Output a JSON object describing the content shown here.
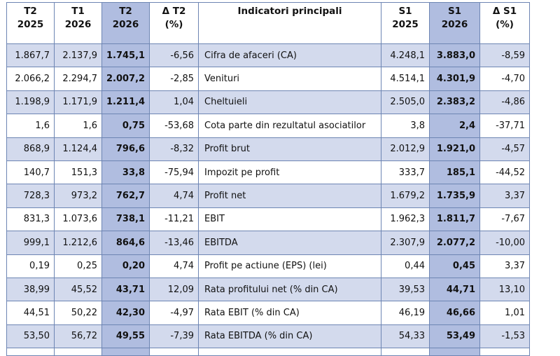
{
  "header": {
    "c1": [
      "T2",
      "2025"
    ],
    "c2": [
      "T1",
      "2026"
    ],
    "c3": [
      "T2",
      "2026"
    ],
    "c4": [
      "Δ T2",
      "(%)"
    ],
    "c5": "Indicatori principali",
    "c6": [
      "S1",
      "2025"
    ],
    "c7": [
      "S1",
      "2026"
    ],
    "c8": [
      "Δ S1",
      "(%)"
    ]
  },
  "rows": [
    {
      "t2_2025": "1.867,7",
      "t1_2026": "2.137,9",
      "t2_2026": "1.745,1",
      "d_t2": "-6,56",
      "name": "Cifra de afaceri (CA)",
      "s1_2025": "4.248,1",
      "s1_2026": "3.883,0",
      "d_s1": "-8,59"
    },
    {
      "t2_2025": "2.066,2",
      "t1_2026": "2.294,7",
      "t2_2026": "2.007,2",
      "d_t2": "-2,85",
      "name": "Venituri",
      "s1_2025": "4.514,1",
      "s1_2026": "4.301,9",
      "d_s1": "-4,70"
    },
    {
      "t2_2025": "1.198,9",
      "t1_2026": "1.171,9",
      "t2_2026": "1.211,4",
      "d_t2": "1,04",
      "name": "Cheltuieli",
      "s1_2025": "2.505,0",
      "s1_2026": "2.383,2",
      "d_s1": "-4,86"
    },
    {
      "t2_2025": "1,6",
      "t1_2026": "1,6",
      "t2_2026": "0,75",
      "d_t2": "-53,68",
      "name": "Cota parte din rezultatul asociatilor",
      "s1_2025": "3,8",
      "s1_2026": "2,4",
      "d_s1": "-37,71"
    },
    {
      "t2_2025": "868,9",
      "t1_2026": "1.124,4",
      "t2_2026": "796,6",
      "d_t2": "-8,32",
      "name": "Profit brut",
      "s1_2025": "2.012,9",
      "s1_2026": "1.921,0",
      "d_s1": "-4,57"
    },
    {
      "t2_2025": "140,7",
      "t1_2026": "151,3",
      "t2_2026": "33,8",
      "d_t2": "-75,94",
      "name": "Impozit pe profit",
      "s1_2025": "333,7",
      "s1_2026": "185,1",
      "d_s1": "-44,52"
    },
    {
      "t2_2025": "728,3",
      "t1_2026": "973,2",
      "t2_2026": "762,7",
      "d_t2": "4,74",
      "name": "Profit net",
      "s1_2025": "1.679,2",
      "s1_2026": "1.735,9",
      "d_s1": "3,37"
    },
    {
      "t2_2025": "831,3",
      "t1_2026": "1.073,6",
      "t2_2026": "738,1",
      "d_t2": "-11,21",
      "name": "EBIT",
      "s1_2025": "1.962,3",
      "s1_2026": "1.811,7",
      "d_s1": "-7,67"
    },
    {
      "t2_2025": "999,1",
      "t1_2026": "1.212,6",
      "t2_2026": "864,6",
      "d_t2": "-13,46",
      "name": "EBITDA",
      "s1_2025": "2.307,9",
      "s1_2026": "2.077,2",
      "d_s1": "-10,00"
    },
    {
      "t2_2025": "0,19",
      "t1_2026": "0,25",
      "t2_2026": "0,20",
      "d_t2": "4,74",
      "name": "Profit pe actiune (EPS) (lei)",
      "s1_2025": "0,44",
      "s1_2026": "0,45",
      "d_s1": "3,37"
    },
    {
      "t2_2025": "38,99",
      "t1_2026": "45,52",
      "t2_2026": "43,71",
      "d_t2": "12,09",
      "name": "Rata profitului net (% din CA)",
      "s1_2025": "39,53",
      "s1_2026": "44,71",
      "d_s1": "13,10"
    },
    {
      "t2_2025": "44,51",
      "t1_2026": "50,22",
      "t2_2026": "42,30",
      "d_t2": "-4,97",
      "name": "Rata EBIT (% din CA)",
      "s1_2025": "46,19",
      "s1_2026": "46,66",
      "d_s1": "1,01"
    },
    {
      "t2_2025": "53,50",
      "t1_2026": "56,72",
      "t2_2026": "49,55",
      "d_t2": "-7,39",
      "name": "Rata EBITDA (% din CA)",
      "s1_2025": "54,33",
      "s1_2026": "53,49",
      "d_s1": "-1,53"
    }
  ]
}
